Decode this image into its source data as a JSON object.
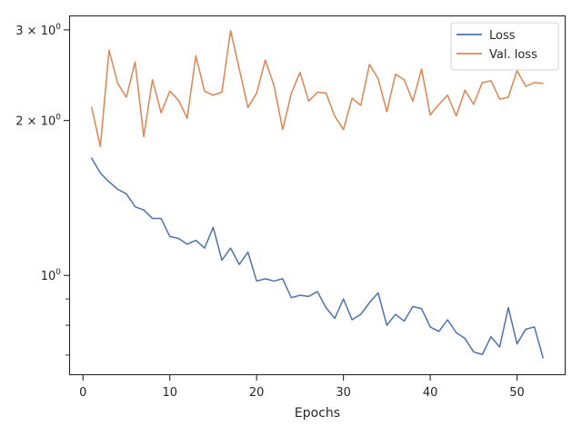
{
  "chart_data": {
    "type": "line",
    "title": "",
    "xlabel": "Epochs",
    "ylabel": "",
    "y_scale": "log",
    "xlim": [
      -1.6,
      55.6
    ],
    "ylim": [
      0.64,
      3.2
    ],
    "grid": false,
    "legend_position": "top-right",
    "x_ticks": [
      0,
      10,
      20,
      30,
      40,
      50
    ],
    "x_tick_labels": [
      "0",
      "10",
      "20",
      "30",
      "40",
      "50"
    ],
    "y_ticks": [
      1,
      2,
      3
    ],
    "y_tick_labels": [
      {
        "base": "10",
        "exp": "0",
        "coef": ""
      },
      {
        "base": "10",
        "exp": "0",
        "coef": "2 × "
      },
      {
        "base": "10",
        "exp": "0",
        "coef": "3 × "
      }
    ],
    "y_minor_ticks": [
      0.7,
      0.8,
      0.9
    ],
    "x": [
      1,
      2,
      3,
      4,
      5,
      6,
      7,
      8,
      9,
      10,
      11,
      12,
      13,
      14,
      15,
      16,
      17,
      18,
      19,
      20,
      21,
      22,
      23,
      24,
      25,
      26,
      27,
      28,
      29,
      30,
      31,
      32,
      33,
      34,
      35,
      36,
      37,
      38,
      39,
      40,
      41,
      42,
      43,
      44,
      45,
      46,
      47,
      48,
      49,
      50,
      51,
      52,
      53
    ],
    "series": [
      {
        "name": "Loss",
        "color": "#4c72b0",
        "values": [
          1.69,
          1.58,
          1.52,
          1.47,
          1.44,
          1.36,
          1.34,
          1.29,
          1.29,
          1.19,
          1.18,
          1.15,
          1.17,
          1.13,
          1.24,
          1.07,
          1.13,
          1.05,
          1.11,
          0.975,
          0.985,
          0.975,
          0.985,
          0.905,
          0.915,
          0.91,
          0.93,
          0.865,
          0.825,
          0.9,
          0.82,
          0.84,
          0.885,
          0.925,
          0.8,
          0.84,
          0.815,
          0.87,
          0.862,
          0.794,
          0.778,
          0.82,
          0.774,
          0.754,
          0.71,
          0.702,
          0.76,
          0.726,
          0.866,
          0.736,
          0.786,
          0.794,
          0.692
        ]
      },
      {
        "name": "Val. loss",
        "color": "#dd8452",
        "values": [
          2.12,
          1.78,
          2.74,
          2.36,
          2.22,
          2.6,
          1.86,
          2.4,
          2.07,
          2.28,
          2.19,
          2.02,
          2.67,
          2.28,
          2.24,
          2.27,
          2.99,
          2.52,
          2.12,
          2.26,
          2.62,
          2.34,
          1.92,
          2.26,
          2.48,
          2.18,
          2.27,
          2.26,
          2.04,
          1.92,
          2.21,
          2.14,
          2.57,
          2.41,
          2.08,
          2.46,
          2.4,
          2.18,
          2.52,
          2.05,
          2.15,
          2.24,
          2.04,
          2.29,
          2.15,
          2.37,
          2.39,
          2.2,
          2.22,
          2.5,
          2.33,
          2.37,
          2.36
        ]
      }
    ]
  }
}
